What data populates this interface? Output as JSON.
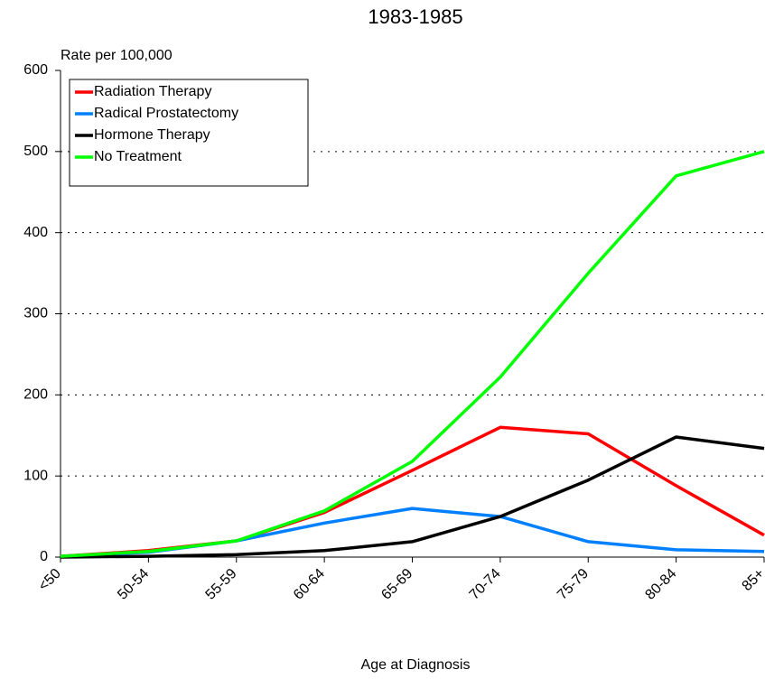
{
  "chart_data": {
    "type": "line",
    "title": "1983-1985",
    "y_label": "Rate per 100,000",
    "x_label": "Age at Diagnosis",
    "categories": [
      "<50",
      "50-54",
      "55-59",
      "60-64",
      "65-69",
      "70-74",
      "75-79",
      "80-84",
      "85+"
    ],
    "series": [
      {
        "name": "Radiation Therapy",
        "color": "#ff0000",
        "values": [
          1,
          8,
          20,
          55,
          107,
          160,
          152,
          88,
          27
        ]
      },
      {
        "name": "Radical Prostatectomy",
        "color": "#0080ff",
        "values": [
          1,
          6,
          20,
          42,
          60,
          50,
          19,
          9,
          7
        ]
      },
      {
        "name": "Hormone Therapy",
        "color": "#000000",
        "values": [
          0,
          1,
          3,
          8,
          19,
          50,
          95,
          148,
          134
        ]
      },
      {
        "name": "No Treatment",
        "color": "#00ff00",
        "values": [
          1,
          7,
          20,
          57,
          118,
          222,
          350,
          470,
          500
        ]
      }
    ],
    "ylim": [
      0,
      600
    ],
    "yticks": [
      0,
      100,
      200,
      300,
      400,
      500,
      600
    ],
    "grid": true,
    "legend": "top-left"
  }
}
